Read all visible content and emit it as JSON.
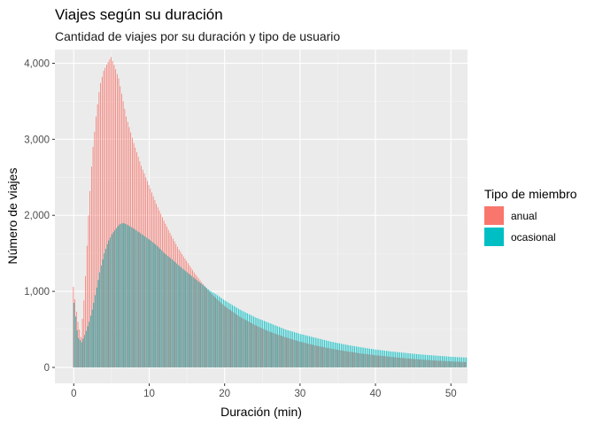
{
  "chart_data": {
    "type": "bar",
    "title": "Viajes según su duración",
    "subtitle": "Cantidad de viajes por su duración y tipo de usuario",
    "xlabel": "Duración (min)",
    "ylabel": "Número de viajes",
    "xlim": [
      -2.5,
      52.2
    ],
    "ylim": [
      -210,
      4180
    ],
    "x_ticks": [
      0,
      10,
      20,
      30,
      40,
      50
    ],
    "x_tick_labels": [
      "0",
      "10",
      "20",
      "30",
      "40",
      "50"
    ],
    "y_ticks": [
      0,
      1000,
      2000,
      3000,
      4000
    ],
    "y_tick_labels": [
      "0",
      "1,000",
      "2,000",
      "3,000",
      "4,000"
    ],
    "bin_width_min": 0.2,
    "grid": true,
    "legend": {
      "title": "Tipo de miembro",
      "position": "right"
    },
    "x": [
      0,
      0.5,
      1,
      1.5,
      2,
      2.5,
      3,
      3.5,
      4,
      4.5,
      5,
      5.5,
      6,
      6.5,
      7,
      8,
      9,
      10,
      11,
      12,
      13,
      14,
      15,
      16,
      17,
      18,
      19,
      20,
      22,
      24,
      26,
      28,
      30,
      32,
      34,
      36,
      38,
      40,
      42,
      44,
      46,
      48,
      50,
      52
    ],
    "series": [
      {
        "name": "anual",
        "color": "#F8766D",
        "values": [
          1060,
          650,
          400,
          1000,
          2000,
          2800,
          3300,
          3700,
          3900,
          4000,
          4080,
          3950,
          3800,
          3550,
          3300,
          2950,
          2650,
          2400,
          2150,
          1930,
          1730,
          1550,
          1400,
          1250,
          1120,
          1000,
          900,
          810,
          670,
          560,
          470,
          400,
          340,
          290,
          250,
          215,
          185,
          160,
          140,
          120,
          105,
          90,
          80,
          70
        ]
      },
      {
        "name": "ocasional",
        "color": "#00BFC4",
        "values": [
          850,
          400,
          330,
          450,
          600,
          800,
          1050,
          1300,
          1500,
          1650,
          1750,
          1820,
          1880,
          1900,
          1880,
          1820,
          1750,
          1680,
          1600,
          1500,
          1420,
          1330,
          1250,
          1170,
          1090,
          1010,
          950,
          880,
          760,
          660,
          580,
          500,
          440,
          390,
          340,
          300,
          265,
          235,
          210,
          190,
          170,
          155,
          140,
          130
        ]
      }
    ]
  }
}
